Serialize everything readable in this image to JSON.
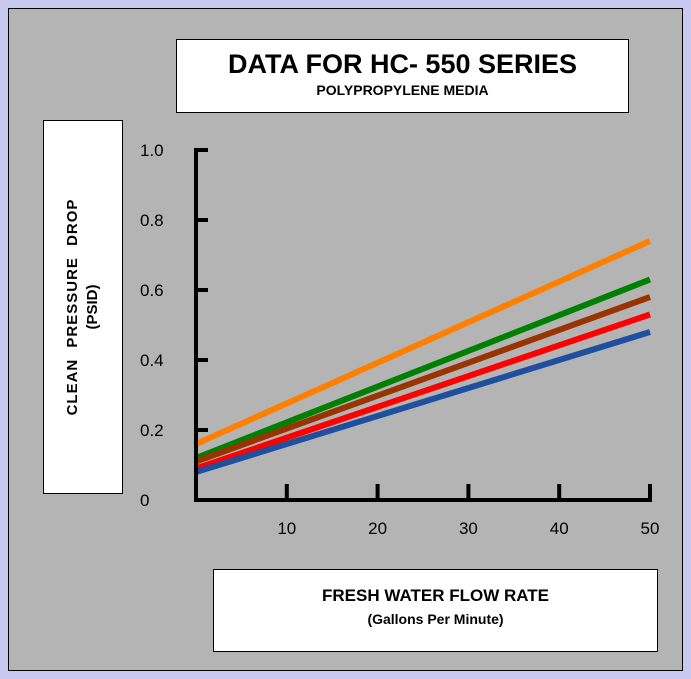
{
  "title": "DATA FOR HC- 550 SERIES",
  "subtitle": "POLYPROPYLENE MEDIA",
  "ylabel_line1": "CLEAN PRESSURE DROP",
  "ylabel_line2": "(PSID)",
  "xlabel_line1": "FRESH WATER FLOW RATE",
  "xlabel_line2": "(Gallons Per Minute)",
  "chart_data": {
    "type": "line",
    "title": "DATA FOR HC- 550 SERIES",
    "subtitle": "POLYPROPYLENE MEDIA",
    "xlabel": "FRESH WATER FLOW RATE (Gallons Per Minute)",
    "ylabel": "CLEAN PRESSURE DROP (PSID)",
    "xlim": [
      0,
      50
    ],
    "ylim": [
      0,
      1.0
    ],
    "x_ticks": [
      "10",
      "20",
      "30",
      "40",
      "50"
    ],
    "x_tick_values": [
      10,
      20,
      30,
      40,
      50
    ],
    "y_ticks": [
      "0",
      "0.2",
      "0.4",
      "0.6",
      "0.8",
      "1.0"
    ],
    "y_tick_values": [
      0,
      0.2,
      0.4,
      0.6,
      0.8,
      1.0
    ],
    "grid": false,
    "series": [
      {
        "color": "#ff8000",
        "x": [
          0,
          50
        ],
        "y": [
          0.16,
          0.74
        ]
      },
      {
        "color": "#008000",
        "x": [
          0,
          50
        ],
        "y": [
          0.12,
          0.63
        ]
      },
      {
        "color": "#993300",
        "x": [
          0,
          50
        ],
        "y": [
          0.11,
          0.58
        ]
      },
      {
        "color": "#ff0000",
        "x": [
          0,
          50
        ],
        "y": [
          0.09,
          0.53
        ]
      },
      {
        "color": "#1f4f9f",
        "x": [
          0,
          50
        ],
        "y": [
          0.08,
          0.48
        ]
      }
    ]
  }
}
